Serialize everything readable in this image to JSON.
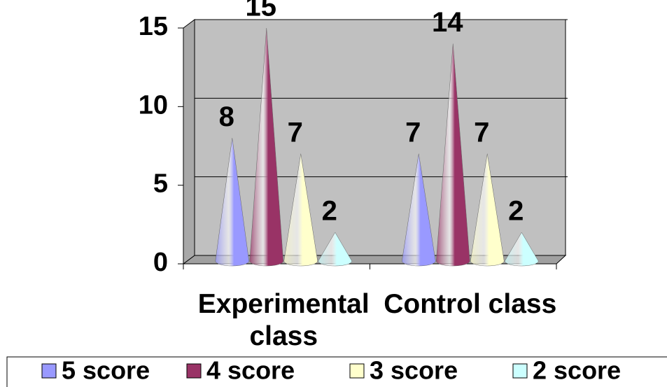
{
  "chart_data": {
    "type": "cone",
    "categories": [
      "Experimental class",
      "Control class"
    ],
    "series": [
      {
        "name": "5 score",
        "color": "#9999ff",
        "values": [
          8,
          7
        ]
      },
      {
        "name": "4 score",
        "color": "#993366",
        "values": [
          15,
          14
        ]
      },
      {
        "name": "3 score",
        "color": "#ffffcc",
        "values": [
          7,
          7
        ]
      },
      {
        "name": "2 score",
        "color": "#ccffff",
        "values": [
          2,
          2
        ]
      }
    ],
    "ylim": [
      0,
      15
    ],
    "yticks": [
      0,
      5,
      10,
      15
    ],
    "grid": true,
    "legend": "bottom"
  }
}
